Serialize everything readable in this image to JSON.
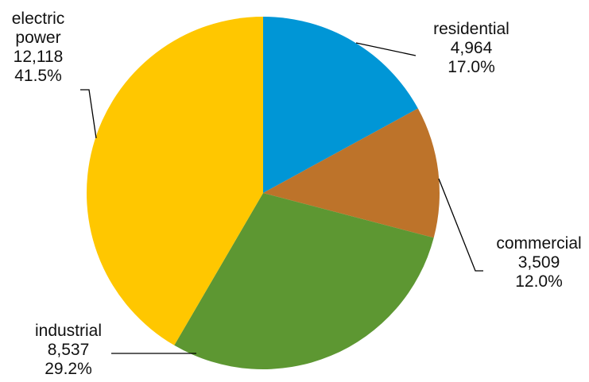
{
  "chart_data": {
    "type": "pie",
    "title": "",
    "slices": [
      {
        "label": "residential",
        "value": 4964,
        "value_text": "4,964",
        "percent_text": "17.0%",
        "color": "#0096D6"
      },
      {
        "label": "commercial",
        "value": 3509,
        "value_text": "3,509",
        "percent_text": "12.0%",
        "color": "#BD732A"
      },
      {
        "label": "industrial",
        "value": 8537,
        "value_text": "8,537",
        "percent_text": "29.2%",
        "color": "#5D9732"
      },
      {
        "label": "electric\npower",
        "value": 12118,
        "value_text": "12,118",
        "percent_text": "41.5%",
        "color": "#FFC700"
      }
    ],
    "start_angle": "12 o'clock",
    "direction": "clockwise",
    "legend": "none"
  }
}
